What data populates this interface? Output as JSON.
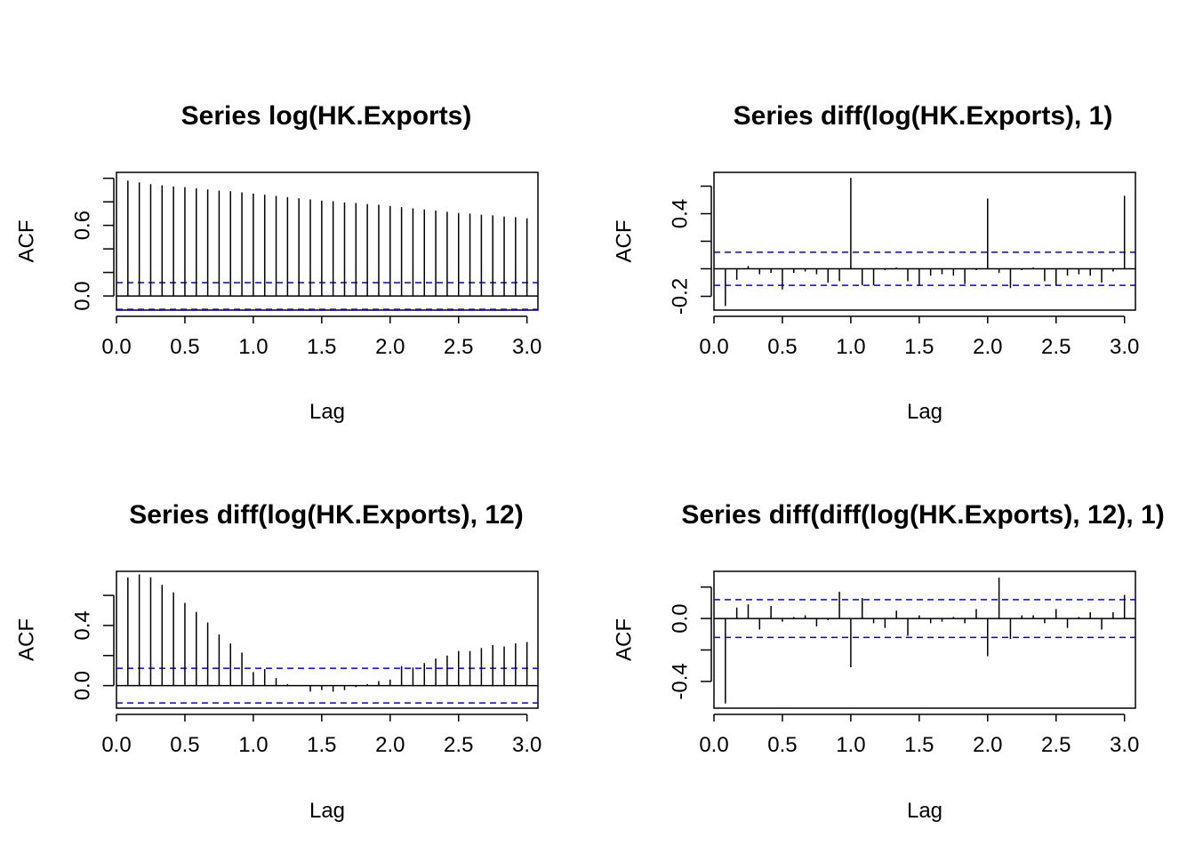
{
  "chart_data": [
    {
      "type": "bar",
      "title": "Series log(HK.Exports)",
      "xlabel": "Lag",
      "ylabel": "ACF",
      "xlim": [
        0,
        3.08
      ],
      "ylim": [
        -0.12,
        1.05
      ],
      "xticks": [
        0,
        0.5,
        1,
        1.5,
        2,
        2.5,
        3
      ],
      "xtick_labels": [
        "0.0",
        "0.5",
        "1.0",
        "1.5",
        "2.0",
        "2.5",
        "3.0"
      ],
      "yticks": [
        0,
        0.2,
        0.4,
        0.6,
        0.8,
        1.0
      ],
      "ytick_labels": [
        "0.0",
        "",
        "",
        "0.6",
        "",
        ""
      ],
      "ci": 0.113,
      "x": [
        0.0833,
        0.1667,
        0.25,
        0.3333,
        0.4167,
        0.5,
        0.5833,
        0.6667,
        0.75,
        0.8333,
        0.9167,
        1.0,
        1.0833,
        1.1667,
        1.25,
        1.3333,
        1.4167,
        1.5,
        1.5833,
        1.6667,
        1.75,
        1.8333,
        1.9167,
        2.0,
        2.0833,
        2.1667,
        2.25,
        2.3333,
        2.4167,
        2.5,
        2.5833,
        2.6667,
        2.75,
        2.8333,
        2.9167,
        3.0
      ],
      "values": [
        0.98,
        0.965,
        0.95,
        0.94,
        0.93,
        0.925,
        0.915,
        0.905,
        0.895,
        0.89,
        0.88,
        0.87,
        0.86,
        0.85,
        0.84,
        0.83,
        0.82,
        0.81,
        0.805,
        0.795,
        0.79,
        0.78,
        0.775,
        0.765,
        0.755,
        0.745,
        0.735,
        0.725,
        0.715,
        0.705,
        0.7,
        0.69,
        0.685,
        0.675,
        0.67,
        0.66
      ]
    },
    {
      "type": "bar",
      "title": "Series diff(log(HK.Exports), 1)",
      "xlabel": "Lag",
      "ylabel": "ACF",
      "xlim": [
        0,
        3.08
      ],
      "ylim": [
        -0.3,
        0.7
      ],
      "xticks": [
        0,
        0.5,
        1,
        1.5,
        2,
        2.5,
        3
      ],
      "xtick_labels": [
        "0.0",
        "0.5",
        "1.0",
        "1.5",
        "2.0",
        "2.5",
        "3.0"
      ],
      "yticks": [
        -0.2,
        0,
        0.2,
        0.4,
        0.6
      ],
      "ytick_labels": [
        "-0.2",
        "",
        "",
        "0.4",
        ""
      ],
      "ci": 0.12,
      "x": [
        0.0833,
        0.1667,
        0.25,
        0.3333,
        0.4167,
        0.5,
        0.5833,
        0.6667,
        0.75,
        0.8333,
        0.9167,
        1.0,
        1.0833,
        1.1667,
        1.25,
        1.3333,
        1.4167,
        1.5,
        1.5833,
        1.6667,
        1.75,
        1.8333,
        1.9167,
        2.0,
        2.0833,
        2.1667,
        2.25,
        2.3333,
        2.4167,
        2.5,
        2.5833,
        2.6667,
        2.75,
        2.8333,
        2.9167,
        3.0
      ],
      "values": [
        -0.27,
        -0.08,
        0.02,
        -0.04,
        -0.03,
        -0.15,
        -0.03,
        -0.02,
        -0.04,
        -0.1,
        -0.09,
        0.66,
        -0.12,
        -0.12,
        -0.01,
        0.01,
        -0.09,
        -0.12,
        -0.05,
        -0.04,
        -0.05,
        -0.11,
        -0.01,
        0.51,
        -0.03,
        -0.14,
        -0.01,
        0.01,
        -0.09,
        -0.12,
        -0.05,
        -0.04,
        -0.05,
        -0.1,
        -0.02,
        0.53
      ]
    },
    {
      "type": "bar",
      "title": "Series diff(log(HK.Exports), 12)",
      "xlabel": "Lag",
      "ylabel": "ACF",
      "xlim": [
        0,
        3.08
      ],
      "ylim": [
        -0.15,
        0.76
      ],
      "xticks": [
        0,
        0.5,
        1,
        1.5,
        2,
        2.5,
        3
      ],
      "xtick_labels": [
        "0.0",
        "0.5",
        "1.0",
        "1.5",
        "2.0",
        "2.5",
        "3.0"
      ],
      "yticks": [
        0,
        0.2,
        0.4,
        0.6
      ],
      "ytick_labels": [
        "0.0",
        "",
        "0.4",
        ""
      ],
      "ci": 0.115,
      "x": [
        0.0833,
        0.1667,
        0.25,
        0.3333,
        0.4167,
        0.5,
        0.5833,
        0.6667,
        0.75,
        0.8333,
        0.9167,
        1.0,
        1.0833,
        1.1667,
        1.25,
        1.3333,
        1.4167,
        1.5,
        1.5833,
        1.6667,
        1.75,
        1.8333,
        1.9167,
        2.0,
        2.0833,
        2.1667,
        2.25,
        2.3333,
        2.4167,
        2.5,
        2.5833,
        2.6667,
        2.75,
        2.8333,
        2.9167,
        3.0
      ],
      "values": [
        0.72,
        0.74,
        0.72,
        0.67,
        0.62,
        0.55,
        0.49,
        0.42,
        0.34,
        0.28,
        0.22,
        0.09,
        0.11,
        0.05,
        0.01,
        0.0,
        -0.04,
        -0.03,
        -0.04,
        -0.03,
        -0.01,
        0.01,
        0.03,
        0.04,
        0.13,
        0.12,
        0.15,
        0.18,
        0.2,
        0.23,
        0.23,
        0.25,
        0.27,
        0.26,
        0.28,
        0.29
      ]
    },
    {
      "type": "bar",
      "title": "Series diff(diff(log(HK.Exports), 12), 1)",
      "xlabel": "Lag",
      "ylabel": "ACF",
      "xlim": [
        0,
        3.08
      ],
      "ylim": [
        -0.57,
        0.3
      ],
      "xticks": [
        0,
        0.5,
        1,
        1.5,
        2,
        2.5,
        3
      ],
      "xtick_labels": [
        "0.0",
        "0.5",
        "1.0",
        "1.5",
        "2.0",
        "2.5",
        "3.0"
      ],
      "yticks": [
        -0.4,
        -0.2,
        0,
        0.2
      ],
      "ytick_labels": [
        "-0.4",
        "",
        "0.0",
        ""
      ],
      "ci": 0.12,
      "x": [
        0.0833,
        0.1667,
        0.25,
        0.3333,
        0.4167,
        0.5,
        0.5833,
        0.6667,
        0.75,
        0.8333,
        0.9167,
        1.0,
        1.0833,
        1.1667,
        1.25,
        1.3333,
        1.4167,
        1.5,
        1.5833,
        1.6667,
        1.75,
        1.8333,
        1.9167,
        2.0,
        2.0833,
        2.1667,
        2.25,
        2.3333,
        2.4167,
        2.5,
        2.5833,
        2.6667,
        2.75,
        2.8333,
        2.9167,
        3.0
      ],
      "values": [
        -0.54,
        0.07,
        0.09,
        -0.07,
        0.08,
        -0.02,
        0.01,
        0.02,
        -0.05,
        -0.01,
        0.17,
        -0.31,
        0.13,
        -0.03,
        -0.06,
        0.05,
        -0.11,
        0.02,
        -0.03,
        -0.02,
        0.01,
        -0.03,
        0.06,
        -0.24,
        0.26,
        -0.13,
        0.02,
        0.02,
        -0.03,
        0.06,
        -0.06,
        0.01,
        0.04,
        -0.07,
        0.04,
        0.15
      ]
    }
  ]
}
